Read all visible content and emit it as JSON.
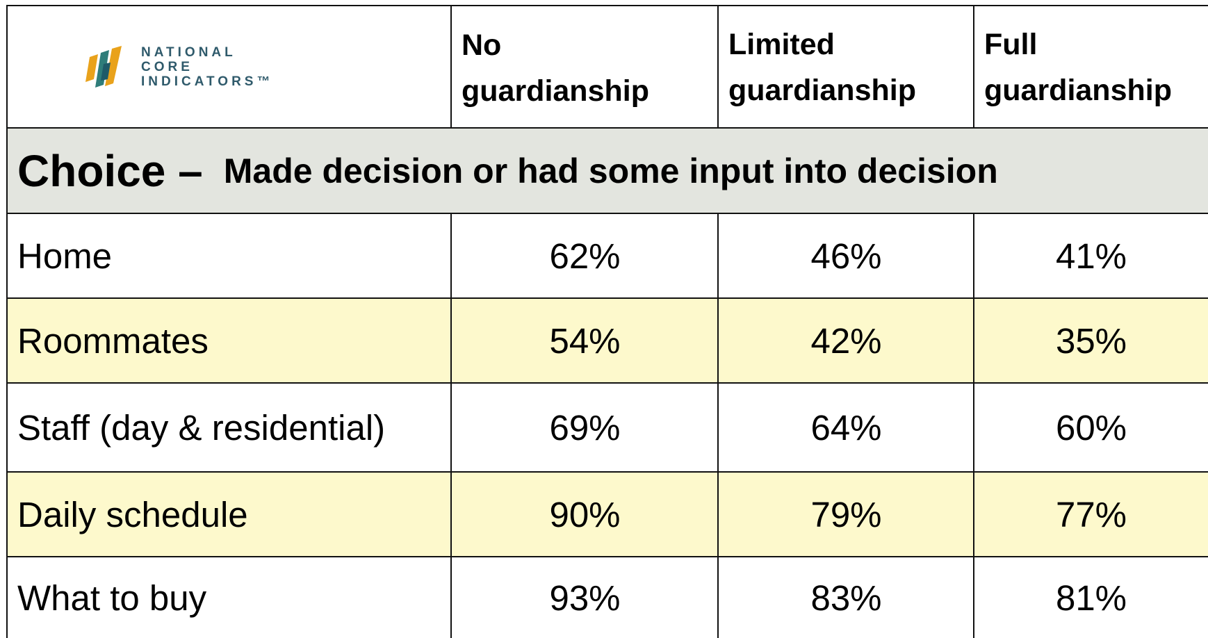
{
  "logo": {
    "lines": [
      "NATIONAL",
      "CORE",
      "INDICATORS™"
    ]
  },
  "table": {
    "columns": [
      "No guardianship",
      "Limited guardianship",
      "Full guardianship"
    ],
    "section": {
      "title": "Choice –",
      "subtitle": "Made decision or had some input into decision"
    },
    "rows": [
      [
        "Home",
        "62%",
        "46%",
        "41%"
      ],
      [
        "Roommates",
        "54%",
        "42%",
        "35%"
      ],
      [
        "Staff (day & residential)",
        "69%",
        "64%",
        "60%"
      ],
      [
        "Daily schedule",
        "90%",
        "79%",
        "77%"
      ],
      [
        "What to buy",
        "93%",
        "83%",
        "81%"
      ]
    ]
  }
}
